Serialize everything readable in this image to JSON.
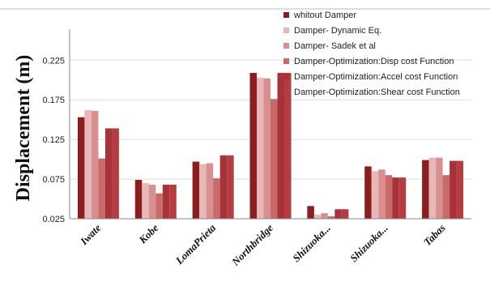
{
  "chart_data": {
    "type": "bar",
    "ylabel": "Displacement (m)",
    "xlabel": "",
    "ylim": [
      0.025,
      0.26
    ],
    "yticks": [
      "0.025",
      "0.075",
      "0.125",
      "0.175",
      "0.225"
    ],
    "legend_position": "top-right",
    "categories": [
      "Iwate",
      "Kobe",
      "LomaPrieta",
      "Northbridge",
      "Shizuoka...",
      "Shizuoka...",
      "Tabas"
    ],
    "series": [
      {
        "name": "whitout Damper",
        "color": "#8b1f1f",
        "values": [
          0.153,
          0.074,
          0.097,
          0.209,
          0.041,
          0.091,
          0.099
        ]
      },
      {
        "name": "Damper- Dynamic Eq.",
        "color": "#e8b8b8",
        "values": [
          0.162,
          0.07,
          0.094,
          0.203,
          0.03,
          0.085,
          0.102
        ]
      },
      {
        "name": "Damper- Sadek et al",
        "color": "#d98f8f",
        "values": [
          0.161,
          0.068,
          0.095,
          0.202,
          0.032,
          0.087,
          0.102
        ]
      },
      {
        "name": "Damper-Optimization:Disp cost Function",
        "color": "#c86a6a",
        "values": [
          0.101,
          0.057,
          0.076,
          0.176,
          0.028,
          0.08,
          0.08
        ]
      },
      {
        "name": "Damper-Optimization:Accel cost Function",
        "color": "#a8323a",
        "values": [
          0.139,
          0.068,
          0.105,
          0.209,
          0.037,
          0.077,
          0.098
        ]
      },
      {
        "name": "Damper-Optimization:Shear cost Function",
        "color": "#b53c40",
        "values": [
          0.139,
          0.068,
          0.105,
          0.209,
          0.037,
          0.077,
          0.098
        ]
      }
    ]
  }
}
